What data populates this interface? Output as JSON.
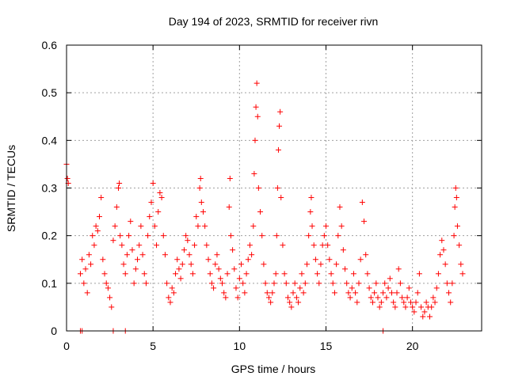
{
  "chart_data": {
    "type": "scatter",
    "title": "Day 194 of 2023, SRMTID for receiver rivn",
    "xlabel": "GPS time / hours",
    "ylabel": "SRMTID / TECUs",
    "xlim": [
      0,
      24
    ],
    "ylim": [
      0,
      0.6
    ],
    "x_ticks": [
      0,
      5,
      10,
      15,
      20
    ],
    "x_tick_labels": [
      "0",
      "5",
      "10",
      "15",
      "20"
    ],
    "y_ticks": [
      0,
      0.1,
      0.2,
      0.3,
      0.4,
      0.5,
      0.6
    ],
    "y_tick_labels": [
      "0",
      "0.1",
      "0.2",
      "0.3",
      "0.4",
      "0.5",
      "0.6"
    ],
    "grid": true,
    "marker": "plus",
    "series": [
      {
        "name": "SRMTID",
        "color": "#ff0000",
        "points": [
          [
            0.0,
            0.35
          ],
          [
            0.05,
            0.32
          ],
          [
            0.1,
            0.31
          ],
          [
            0.8,
            0.0
          ],
          [
            0.9,
            0.0
          ],
          [
            2.7,
            0.0
          ],
          [
            3.4,
            0.0
          ],
          [
            18.3,
            0.0
          ],
          [
            0.8,
            0.12
          ],
          [
            0.9,
            0.15
          ],
          [
            1.0,
            0.1
          ],
          [
            1.1,
            0.13
          ],
          [
            1.2,
            0.08
          ],
          [
            1.3,
            0.16
          ],
          [
            1.4,
            0.14
          ],
          [
            1.5,
            0.2
          ],
          [
            1.6,
            0.18
          ],
          [
            1.7,
            0.22
          ],
          [
            1.8,
            0.21
          ],
          [
            1.9,
            0.24
          ],
          [
            2.0,
            0.28
          ],
          [
            2.1,
            0.15
          ],
          [
            2.2,
            0.12
          ],
          [
            2.3,
            0.1
          ],
          [
            2.4,
            0.09
          ],
          [
            2.5,
            0.07
          ],
          [
            2.6,
            0.05
          ],
          [
            2.7,
            0.19
          ],
          [
            2.8,
            0.22
          ],
          [
            2.9,
            0.26
          ],
          [
            3.0,
            0.3
          ],
          [
            3.05,
            0.31
          ],
          [
            3.1,
            0.2
          ],
          [
            3.2,
            0.18
          ],
          [
            3.3,
            0.14
          ],
          [
            3.4,
            0.12
          ],
          [
            3.5,
            0.16
          ],
          [
            3.6,
            0.2
          ],
          [
            3.7,
            0.23
          ],
          [
            3.8,
            0.17
          ],
          [
            3.9,
            0.1
          ],
          [
            4.0,
            0.13
          ],
          [
            4.1,
            0.15
          ],
          [
            4.2,
            0.18
          ],
          [
            4.3,
            0.22
          ],
          [
            4.4,
            0.16
          ],
          [
            4.5,
            0.12
          ],
          [
            4.6,
            0.1
          ],
          [
            4.7,
            0.2
          ],
          [
            4.8,
            0.24
          ],
          [
            4.9,
            0.27
          ],
          [
            5.0,
            0.31
          ],
          [
            5.1,
            0.22
          ],
          [
            5.2,
            0.18
          ],
          [
            5.3,
            0.25
          ],
          [
            5.4,
            0.29
          ],
          [
            5.5,
            0.28
          ],
          [
            5.6,
            0.2
          ],
          [
            5.7,
            0.16
          ],
          [
            5.8,
            0.1
          ],
          [
            5.9,
            0.07
          ],
          [
            6.0,
            0.06
          ],
          [
            6.1,
            0.09
          ],
          [
            6.2,
            0.08
          ],
          [
            6.3,
            0.12
          ],
          [
            6.4,
            0.15
          ],
          [
            6.5,
            0.13
          ],
          [
            6.6,
            0.11
          ],
          [
            6.7,
            0.14
          ],
          [
            6.8,
            0.17
          ],
          [
            6.9,
            0.2
          ],
          [
            7.0,
            0.19
          ],
          [
            7.1,
            0.16
          ],
          [
            7.2,
            0.14
          ],
          [
            7.3,
            0.12
          ],
          [
            7.4,
            0.18
          ],
          [
            7.5,
            0.24
          ],
          [
            7.6,
            0.22
          ],
          [
            7.7,
            0.3
          ],
          [
            7.75,
            0.32
          ],
          [
            7.8,
            0.27
          ],
          [
            7.9,
            0.25
          ],
          [
            8.0,
            0.22
          ],
          [
            8.1,
            0.18
          ],
          [
            8.2,
            0.15
          ],
          [
            8.3,
            0.12
          ],
          [
            8.4,
            0.1
          ],
          [
            8.5,
            0.09
          ],
          [
            8.6,
            0.14
          ],
          [
            8.7,
            0.16
          ],
          [
            8.8,
            0.13
          ],
          [
            8.9,
            0.11
          ],
          [
            9.0,
            0.1
          ],
          [
            9.1,
            0.08
          ],
          [
            9.2,
            0.07
          ],
          [
            9.3,
            0.12
          ],
          [
            9.4,
            0.26
          ],
          [
            9.45,
            0.32
          ],
          [
            9.5,
            0.2
          ],
          [
            9.6,
            0.17
          ],
          [
            9.7,
            0.13
          ],
          [
            9.8,
            0.09
          ],
          [
            9.9,
            0.07
          ],
          [
            10.0,
            0.11
          ],
          [
            10.1,
            0.14
          ],
          [
            10.2,
            0.1
          ],
          [
            10.3,
            0.08
          ],
          [
            10.4,
            0.12
          ],
          [
            10.5,
            0.15
          ],
          [
            10.6,
            0.18
          ],
          [
            10.7,
            0.16
          ],
          [
            10.8,
            0.22
          ],
          [
            10.85,
            0.33
          ],
          [
            10.9,
            0.4
          ],
          [
            10.95,
            0.47
          ],
          [
            11.0,
            0.52
          ],
          [
            11.05,
            0.45
          ],
          [
            11.1,
            0.3
          ],
          [
            11.2,
            0.25
          ],
          [
            11.3,
            0.2
          ],
          [
            11.4,
            0.14
          ],
          [
            11.5,
            0.1
          ],
          [
            11.6,
            0.08
          ],
          [
            11.7,
            0.07
          ],
          [
            11.8,
            0.06
          ],
          [
            11.9,
            0.08
          ],
          [
            12.0,
            0.1
          ],
          [
            12.1,
            0.12
          ],
          [
            12.15,
            0.2
          ],
          [
            12.2,
            0.3
          ],
          [
            12.25,
            0.38
          ],
          [
            12.3,
            0.43
          ],
          [
            12.35,
            0.46
          ],
          [
            12.4,
            0.28
          ],
          [
            12.5,
            0.18
          ],
          [
            12.6,
            0.12
          ],
          [
            12.7,
            0.1
          ],
          [
            12.8,
            0.07
          ],
          [
            12.9,
            0.06
          ],
          [
            13.0,
            0.05
          ],
          [
            13.1,
            0.08
          ],
          [
            13.2,
            0.1
          ],
          [
            13.3,
            0.07
          ],
          [
            13.4,
            0.06
          ],
          [
            13.5,
            0.09
          ],
          [
            13.6,
            0.12
          ],
          [
            13.7,
            0.08
          ],
          [
            13.8,
            0.1
          ],
          [
            13.9,
            0.14
          ],
          [
            14.0,
            0.2
          ],
          [
            14.1,
            0.25
          ],
          [
            14.15,
            0.28
          ],
          [
            14.2,
            0.22
          ],
          [
            14.3,
            0.18
          ],
          [
            14.4,
            0.15
          ],
          [
            14.5,
            0.12
          ],
          [
            14.6,
            0.1
          ],
          [
            14.7,
            0.14
          ],
          [
            14.8,
            0.18
          ],
          [
            14.9,
            0.2
          ],
          [
            15.0,
            0.22
          ],
          [
            15.1,
            0.18
          ],
          [
            15.2,
            0.15
          ],
          [
            15.3,
            0.12
          ],
          [
            15.4,
            0.1
          ],
          [
            15.5,
            0.08
          ],
          [
            15.6,
            0.14
          ],
          [
            15.7,
            0.2
          ],
          [
            15.8,
            0.26
          ],
          [
            15.9,
            0.22
          ],
          [
            16.0,
            0.17
          ],
          [
            16.1,
            0.13
          ],
          [
            16.2,
            0.1
          ],
          [
            16.3,
            0.08
          ],
          [
            16.4,
            0.07
          ],
          [
            16.5,
            0.09
          ],
          [
            16.6,
            0.12
          ],
          [
            16.7,
            0.08
          ],
          [
            16.8,
            0.06
          ],
          [
            16.9,
            0.1
          ],
          [
            17.0,
            0.15
          ],
          [
            17.1,
            0.27
          ],
          [
            17.2,
            0.23
          ],
          [
            17.3,
            0.16
          ],
          [
            17.4,
            0.12
          ],
          [
            17.5,
            0.09
          ],
          [
            17.6,
            0.07
          ],
          [
            17.7,
            0.06
          ],
          [
            17.8,
            0.08
          ],
          [
            17.9,
            0.1
          ],
          [
            18.0,
            0.07
          ],
          [
            18.1,
            0.05
          ],
          [
            18.2,
            0.06
          ],
          [
            18.3,
            0.08
          ],
          [
            18.4,
            0.1
          ],
          [
            18.5,
            0.07
          ],
          [
            18.6,
            0.09
          ],
          [
            18.7,
            0.11
          ],
          [
            18.8,
            0.08
          ],
          [
            18.9,
            0.06
          ],
          [
            19.0,
            0.05
          ],
          [
            19.1,
            0.08
          ],
          [
            19.2,
            0.13
          ],
          [
            19.3,
            0.1
          ],
          [
            19.4,
            0.07
          ],
          [
            19.5,
            0.06
          ],
          [
            19.6,
            0.05
          ],
          [
            19.7,
            0.07
          ],
          [
            19.8,
            0.09
          ],
          [
            19.9,
            0.06
          ],
          [
            20.0,
            0.05
          ],
          [
            20.1,
            0.04
          ],
          [
            20.2,
            0.06
          ],
          [
            20.3,
            0.08
          ],
          [
            20.4,
            0.12
          ],
          [
            20.5,
            0.05
          ],
          [
            20.6,
            0.03
          ],
          [
            20.7,
            0.04
          ],
          [
            20.8,
            0.06
          ],
          [
            20.9,
            0.05
          ],
          [
            21.0,
            0.03
          ],
          [
            21.1,
            0.05
          ],
          [
            21.2,
            0.07
          ],
          [
            21.3,
            0.06
          ],
          [
            21.4,
            0.09
          ],
          [
            21.5,
            0.12
          ],
          [
            21.6,
            0.16
          ],
          [
            21.7,
            0.19
          ],
          [
            21.8,
            0.17
          ],
          [
            21.9,
            0.14
          ],
          [
            22.0,
            0.1
          ],
          [
            22.1,
            0.08
          ],
          [
            22.2,
            0.06
          ],
          [
            22.3,
            0.1
          ],
          [
            22.4,
            0.2
          ],
          [
            22.45,
            0.26
          ],
          [
            22.5,
            0.3
          ],
          [
            22.55,
            0.28
          ],
          [
            22.6,
            0.22
          ],
          [
            22.7,
            0.18
          ],
          [
            22.8,
            0.14
          ],
          [
            22.9,
            0.12
          ]
        ]
      }
    ]
  }
}
